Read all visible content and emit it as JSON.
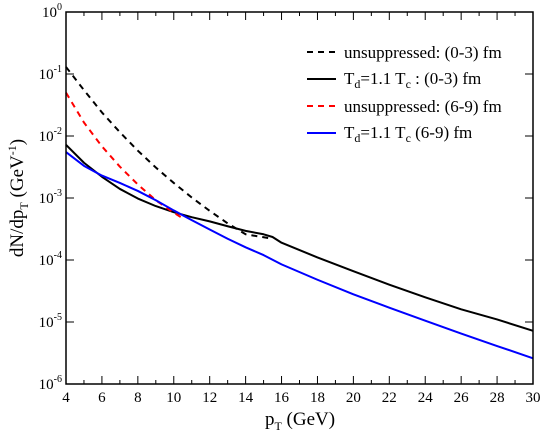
{
  "chart_data": {
    "type": "line",
    "xlabel": {
      "main": "p",
      "sub": "T",
      "rest": " (GeV)"
    },
    "ylabel": {
      "part1": "dN/dp",
      "sub": "T",
      "part2": " (GeV",
      "sup": "-1",
      "part3": ")"
    },
    "xlim": [
      4,
      30
    ],
    "ylim": [
      1e-06,
      1
    ],
    "yscale": "log",
    "x_ticks": [
      4,
      6,
      8,
      10,
      12,
      14,
      16,
      18,
      20,
      22,
      24,
      26,
      28,
      30
    ],
    "y_ticks": [
      {
        "value": 1,
        "base": "10",
        "exp": "0"
      },
      {
        "value": 0.1,
        "base": "10",
        "exp": "-1"
      },
      {
        "value": 0.01,
        "base": "10",
        "exp": "-2"
      },
      {
        "value": 0.001,
        "base": "10",
        "exp": "-3"
      },
      {
        "value": 0.0001,
        "base": "10",
        "exp": "-4"
      },
      {
        "value": 1e-05,
        "base": "10",
        "exp": "-5"
      },
      {
        "value": 1e-06,
        "base": "10",
        "exp": "-6"
      }
    ],
    "legend_position": "top-right",
    "series": [
      {
        "name": "unsuppressed: (0-3) fm",
        "legend": {
          "text": "unsuppressed: (0-3) fm"
        },
        "color": "#000000",
        "dash": true,
        "x": [
          4,
          5,
          6,
          7,
          8,
          9,
          10,
          11,
          12,
          13,
          14,
          15.5
        ],
        "y": [
          0.13,
          0.055,
          0.024,
          0.0115,
          0.0058,
          0.0031,
          0.00175,
          0.00102,
          0.00062,
          0.00039,
          0.00026,
          0.00022
        ]
      },
      {
        "name": "Td=1.1 Tc : (0-3) fm",
        "legend": {
          "t1": "T",
          "s1": "d",
          "mid": "=1.1 T",
          "s2": "c",
          "end": " : (0-3) fm"
        },
        "color": "#000000",
        "dash": false,
        "x": [
          4,
          5,
          6,
          7,
          8,
          9,
          10,
          11,
          12,
          13,
          14,
          15,
          15.5,
          16,
          18,
          20,
          22,
          24,
          26,
          28,
          30
        ],
        "y": [
          0.0072,
          0.0037,
          0.0022,
          0.0014,
          0.00098,
          0.00074,
          0.00059,
          0.00049,
          0.00042,
          0.00035,
          0.000295,
          0.00026,
          0.000235,
          0.00019,
          0.00011,
          6.6e-05,
          4e-05,
          2.5e-05,
          1.6e-05,
          1.1e-05,
          7.2e-06
        ]
      },
      {
        "name": "unsuppressed: (6-9) fm",
        "legend": {
          "text": "unsuppressed: (6-9) fm"
        },
        "color": "#ff0000",
        "dash": true,
        "x": [
          4,
          5,
          6,
          7,
          8,
          9,
          10,
          10.5
        ],
        "y": [
          0.05,
          0.0165,
          0.0068,
          0.0032,
          0.00165,
          0.00092,
          0.00058,
          0.00047
        ]
      },
      {
        "name": "Td=1.1 Tc (6-9) fm",
        "legend": {
          "t1": "T",
          "s1": "d",
          "mid": "=1.1 T",
          "s2": "c",
          "end": " (6-9) fm"
        },
        "color": "#0000ff",
        "dash": false,
        "x": [
          4,
          5,
          6,
          7,
          8,
          9,
          10,
          11,
          12,
          13,
          14,
          15,
          16,
          18,
          20,
          22,
          24,
          26,
          28,
          30
        ],
        "y": [
          0.0055,
          0.0033,
          0.0023,
          0.00175,
          0.0013,
          0.00092,
          0.00063,
          0.00044,
          0.00031,
          0.00022,
          0.00016,
          0.00012,
          8.5e-05,
          4.8e-05,
          2.8e-05,
          1.7e-05,
          1.05e-05,
          6.5e-06,
          4.1e-06,
          2.6e-06
        ]
      }
    ]
  }
}
